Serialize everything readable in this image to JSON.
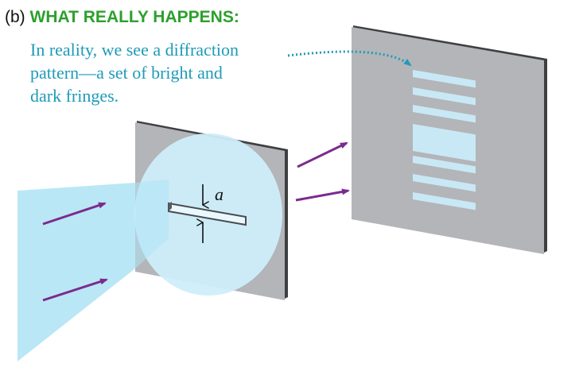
{
  "heading": {
    "label": "(b)",
    "title": "WHAT REALLY HAPPENS:"
  },
  "caption": {
    "lines": [
      "In reality, we see a diffraction",
      "pattern—a set of bright and",
      "dark fringes."
    ]
  },
  "slit": {
    "width_label": "a"
  },
  "colors": {
    "title_green": "#2ca02c",
    "caption_blue": "#1e9bb8",
    "plate_gray": "#b3b5b8",
    "plate_edge": "#3d3f41",
    "light_blue": "#cdeefa",
    "beam_blue": "#aee3f5",
    "arrow_purple": "#7b2a8e",
    "fringe_blue": "#c8e8f5"
  },
  "fringes": {
    "count": 7,
    "central_index": 3
  }
}
